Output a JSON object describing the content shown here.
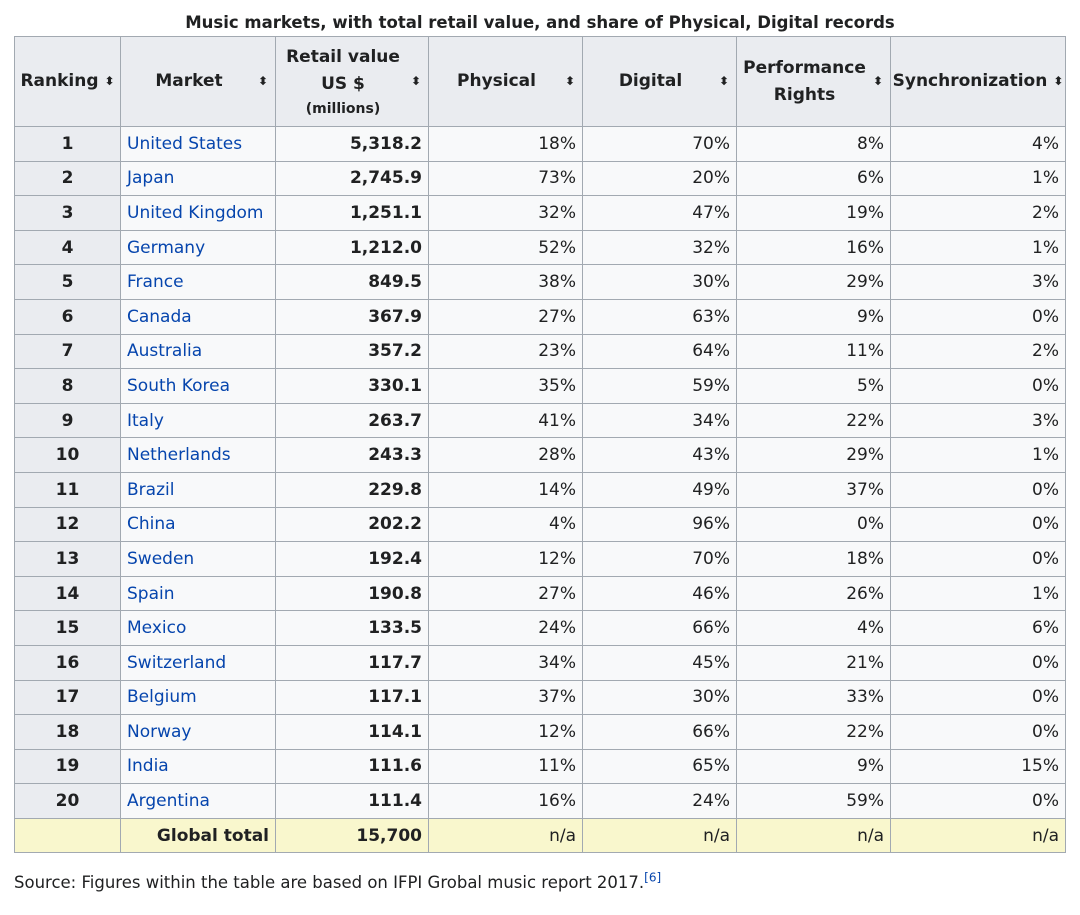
{
  "caption": "Music markets, with total retail value, and share of Physical, Digital records",
  "sort_icon": "sort-updown-icon",
  "link_color": "#0645ad",
  "headers": {
    "ranking": "Ranking",
    "market": "Market",
    "retail_line1": "Retail value",
    "retail_line2": "US $",
    "retail_units": "(millions)",
    "physical": "Physical",
    "digital": "Digital",
    "performance_line1": "Performance",
    "performance_line2": "Rights",
    "synchronization": "Synchronization",
    "sort_glyph": "⬍"
  },
  "rows": [
    {
      "rank": "1",
      "market": "United States",
      "retail": "5,318.2",
      "physical": "18%",
      "digital": "70%",
      "performance": "8%",
      "sync": "4%"
    },
    {
      "rank": "2",
      "market": "Japan",
      "retail": "2,745.9",
      "physical": "73%",
      "digital": "20%",
      "performance": "6%",
      "sync": "1%"
    },
    {
      "rank": "3",
      "market": "United Kingdom",
      "retail": "1,251.1",
      "physical": "32%",
      "digital": "47%",
      "performance": "19%",
      "sync": "2%"
    },
    {
      "rank": "4",
      "market": "Germany",
      "retail": "1,212.0",
      "physical": "52%",
      "digital": "32%",
      "performance": "16%",
      "sync": "1%"
    },
    {
      "rank": "5",
      "market": "France",
      "retail": "849.5",
      "physical": "38%",
      "digital": "30%",
      "performance": "29%",
      "sync": "3%"
    },
    {
      "rank": "6",
      "market": "Canada",
      "retail": "367.9",
      "physical": "27%",
      "digital": "63%",
      "performance": "9%",
      "sync": "0%"
    },
    {
      "rank": "7",
      "market": "Australia",
      "retail": "357.2",
      "physical": "23%",
      "digital": "64%",
      "performance": "11%",
      "sync": "2%"
    },
    {
      "rank": "8",
      "market": "South Korea",
      "retail": "330.1",
      "physical": "35%",
      "digital": "59%",
      "performance": "5%",
      "sync": "0%"
    },
    {
      "rank": "9",
      "market": "Italy",
      "retail": "263.7",
      "physical": "41%",
      "digital": "34%",
      "performance": "22%",
      "sync": "3%"
    },
    {
      "rank": "10",
      "market": "Netherlands",
      "retail": "243.3",
      "physical": "28%",
      "digital": "43%",
      "performance": "29%",
      "sync": "1%"
    },
    {
      "rank": "11",
      "market": "Brazil",
      "retail": "229.8",
      "physical": "14%",
      "digital": "49%",
      "performance": "37%",
      "sync": "0%"
    },
    {
      "rank": "12",
      "market": "China",
      "retail": "202.2",
      "physical": "4%",
      "digital": "96%",
      "performance": "0%",
      "sync": "0%"
    },
    {
      "rank": "13",
      "market": "Sweden",
      "retail": "192.4",
      "physical": "12%",
      "digital": "70%",
      "performance": "18%",
      "sync": "0%"
    },
    {
      "rank": "14",
      "market": "Spain",
      "retail": "190.8",
      "physical": "27%",
      "digital": "46%",
      "performance": "26%",
      "sync": "1%"
    },
    {
      "rank": "15",
      "market": "Mexico",
      "retail": "133.5",
      "physical": "24%",
      "digital": "66%",
      "performance": "4%",
      "sync": "6%"
    },
    {
      "rank": "16",
      "market": "Switzerland",
      "retail": "117.7",
      "physical": "34%",
      "digital": "45%",
      "performance": "21%",
      "sync": "0%"
    },
    {
      "rank": "17",
      "market": "Belgium",
      "retail": "117.1",
      "physical": "37%",
      "digital": "30%",
      "performance": "33%",
      "sync": "0%"
    },
    {
      "rank": "18",
      "market": "Norway",
      "retail": "114.1",
      "physical": "12%",
      "digital": "66%",
      "performance": "22%",
      "sync": "0%"
    },
    {
      "rank": "19",
      "market": "India",
      "retail": "111.6",
      "physical": "11%",
      "digital": "65%",
      "performance": "9%",
      "sync": "15%"
    },
    {
      "rank": "20",
      "market": "Argentina",
      "retail": "111.4",
      "physical": "16%",
      "digital": "24%",
      "performance": "59%",
      "sync": "0%"
    }
  ],
  "total": {
    "label": "Global total",
    "retail": "15,700",
    "physical": "n/a",
    "digital": "n/a",
    "performance": "n/a",
    "sync": "n/a"
  },
  "source": {
    "text": "Source: Figures within the table are based on IFPI Grobal music report 2017.",
    "ref": "[6]"
  }
}
